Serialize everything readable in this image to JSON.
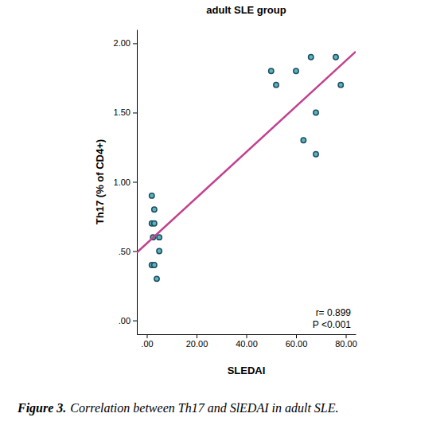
{
  "chart_data": {
    "type": "scatter",
    "title": "adult SLE group",
    "x_label": "SLEDAI",
    "y_label": "Th17 (% of CD4+)",
    "caption_label": "Figure 3.",
    "caption": "Correlation between Th17 and SlEDAI in adult SLE.",
    "annotations": [
      "r= 0.899",
      "P <0.001"
    ],
    "xlim": [
      -4,
      84
    ],
    "ylim": [
      -0.1,
      2.1
    ],
    "xticks": [
      {
        "value": 0,
        "label": ".00"
      },
      {
        "value": 20,
        "label": "20.00"
      },
      {
        "value": 40,
        "label": "40.00"
      },
      {
        "value": 60,
        "label": "60.00"
      },
      {
        "value": 80,
        "label": "80.00"
      }
    ],
    "yticks": [
      {
        "value": 0,
        "label": ".00"
      },
      {
        "value": 0.5,
        "label": ".50"
      },
      {
        "value": 1,
        "label": "1.00"
      },
      {
        "value": 1.5,
        "label": "1.50"
      },
      {
        "value": 2,
        "label": "2.00"
      }
    ],
    "grid": false,
    "series": [
      {
        "type": "scatter",
        "marker": "circle",
        "color": "#5ab4c5",
        "x": [
          2,
          3,
          2,
          3,
          2.5,
          5,
          5,
          2,
          3,
          4,
          50,
          52,
          60,
          66,
          76,
          78,
          68,
          63,
          68
        ],
        "values": [
          0.9,
          0.8,
          0.7,
          0.7,
          0.6,
          0.6,
          0.5,
          0.4,
          0.4,
          0.3,
          1.8,
          1.7,
          1.8,
          1.9,
          1.9,
          1.7,
          1.5,
          1.3,
          1.2
        ]
      },
      {
        "type": "line",
        "line_style": "solid",
        "color": "#c2418f",
        "x": [
          -4,
          84
        ],
        "values": [
          0.49,
          1.94
        ]
      }
    ]
  }
}
